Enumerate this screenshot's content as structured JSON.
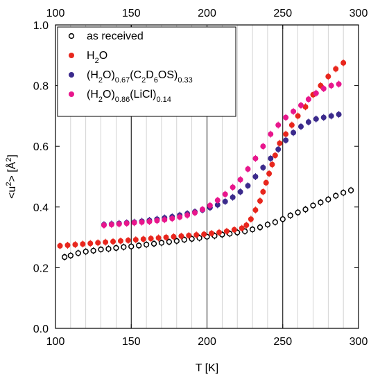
{
  "chart_data": {
    "type": "scatter",
    "xlabel": "T [K]",
    "ylabel_parts": {
      "before": "<u",
      "sup1": "2",
      "mid": "> [Å",
      "sup2": "2",
      "after": "]"
    },
    "xlim": [
      100,
      300
    ],
    "ylim": [
      0.0,
      1.0
    ],
    "x_ticks": [
      100,
      150,
      200,
      250,
      300
    ],
    "y_ticks": [
      0.0,
      0.2,
      0.4,
      0.6,
      0.8,
      1.0
    ],
    "y_tick_labels": [
      "0.0",
      "0.2",
      "0.4",
      "0.6",
      "0.8",
      "1.0"
    ],
    "top_axis_ticks": [
      100,
      150,
      200,
      250,
      300
    ],
    "grid": {
      "major_vertical": [
        150,
        200,
        250
      ],
      "minor_vertical_step": 10,
      "horizontal": false
    },
    "legend_position": "top-left",
    "series": [
      {
        "label_parts": [
          {
            "t": "as received"
          }
        ],
        "color": "#000000",
        "marker": "open-circle",
        "points": [
          [
            106,
            0.235
          ],
          [
            110,
            0.24
          ],
          [
            115,
            0.248
          ],
          [
            120,
            0.253
          ],
          [
            125,
            0.256
          ],
          [
            130,
            0.26
          ],
          [
            135,
            0.262
          ],
          [
            140,
            0.265
          ],
          [
            145,
            0.268
          ],
          [
            150,
            0.27
          ],
          [
            155,
            0.273
          ],
          [
            160,
            0.276
          ],
          [
            165,
            0.279
          ],
          [
            170,
            0.282
          ],
          [
            175,
            0.285
          ],
          [
            180,
            0.288
          ],
          [
            185,
            0.292
          ],
          [
            190,
            0.295
          ],
          [
            195,
            0.298
          ],
          [
            200,
            0.302
          ],
          [
            205,
            0.305
          ],
          [
            210,
            0.309
          ],
          [
            215,
            0.312
          ],
          [
            220,
            0.316
          ],
          [
            225,
            0.32
          ],
          [
            230,
            0.326
          ],
          [
            235,
            0.333
          ],
          [
            240,
            0.342
          ],
          [
            245,
            0.35
          ],
          [
            250,
            0.36
          ],
          [
            255,
            0.372
          ],
          [
            260,
            0.382
          ],
          [
            265,
            0.392
          ],
          [
            270,
            0.405
          ],
          [
            275,
            0.415
          ],
          [
            280,
            0.425
          ],
          [
            285,
            0.437
          ],
          [
            290,
            0.447
          ],
          [
            295,
            0.455
          ]
        ]
      },
      {
        "label_parts": [
          {
            "t": "H"
          },
          {
            "t": "2",
            "sub": true
          },
          {
            "t": "O"
          }
        ],
        "color": "#e8261d",
        "marker": "filled-circle",
        "points": [
          [
            103,
            0.272
          ],
          [
            108,
            0.274
          ],
          [
            113,
            0.276
          ],
          [
            118,
            0.278
          ],
          [
            123,
            0.28
          ],
          [
            128,
            0.282
          ],
          [
            133,
            0.284
          ],
          [
            138,
            0.286
          ],
          [
            143,
            0.288
          ],
          [
            148,
            0.29
          ],
          [
            153,
            0.292
          ],
          [
            158,
            0.294
          ],
          [
            163,
            0.296
          ],
          [
            168,
            0.298
          ],
          [
            173,
            0.3
          ],
          [
            178,
            0.302
          ],
          [
            183,
            0.304
          ],
          [
            188,
            0.306
          ],
          [
            193,
            0.308
          ],
          [
            198,
            0.31
          ],
          [
            203,
            0.313
          ],
          [
            208,
            0.316
          ],
          [
            213,
            0.32
          ],
          [
            218,
            0.325
          ],
          [
            223,
            0.33
          ],
          [
            226,
            0.34
          ],
          [
            229,
            0.36
          ],
          [
            232,
            0.39
          ],
          [
            235,
            0.42
          ],
          [
            237,
            0.45
          ],
          [
            239,
            0.48
          ],
          [
            241,
            0.51
          ],
          [
            243,
            0.54
          ],
          [
            245,
            0.57
          ],
          [
            248,
            0.61
          ],
          [
            252,
            0.64
          ],
          [
            256,
            0.67
          ],
          [
            260,
            0.7
          ],
          [
            265,
            0.73
          ],
          [
            270,
            0.77
          ],
          [
            275,
            0.8
          ],
          [
            280,
            0.83
          ],
          [
            285,
            0.855
          ],
          [
            290,
            0.875
          ]
        ]
      },
      {
        "label_parts": [
          {
            "t": "(H"
          },
          {
            "t": "2",
            "sub": true
          },
          {
            "t": "O)"
          },
          {
            "t": "0.67",
            "sub": true
          },
          {
            "t": "(C"
          },
          {
            "t": "2",
            "sub": true
          },
          {
            "t": "D"
          },
          {
            "t": "6",
            "sub": true
          },
          {
            "t": "OS)"
          },
          {
            "t": "0.33",
            "sub": true
          }
        ],
        "color": "#3b2a8c",
        "marker": "filled-circle",
        "points": [
          [
            132,
            0.342
          ],
          [
            137,
            0.344
          ],
          [
            142,
            0.346
          ],
          [
            147,
            0.348
          ],
          [
            152,
            0.35
          ],
          [
            157,
            0.353
          ],
          [
            162,
            0.356
          ],
          [
            167,
            0.36
          ],
          [
            172,
            0.364
          ],
          [
            177,
            0.368
          ],
          [
            182,
            0.373
          ],
          [
            187,
            0.378
          ],
          [
            192,
            0.384
          ],
          [
            197,
            0.39
          ],
          [
            202,
            0.398
          ],
          [
            207,
            0.407
          ],
          [
            212,
            0.418
          ],
          [
            217,
            0.432
          ],
          [
            222,
            0.45
          ],
          [
            227,
            0.47
          ],
          [
            232,
            0.5
          ],
          [
            237,
            0.53
          ],
          [
            242,
            0.56
          ],
          [
            247,
            0.59
          ],
          [
            252,
            0.62
          ],
          [
            257,
            0.645
          ],
          [
            262,
            0.665
          ],
          [
            267,
            0.68
          ],
          [
            272,
            0.69
          ],
          [
            277,
            0.695
          ],
          [
            282,
            0.7
          ],
          [
            287,
            0.705
          ]
        ]
      },
      {
        "label_parts": [
          {
            "t": "(H"
          },
          {
            "t": "2",
            "sub": true
          },
          {
            "t": "O)"
          },
          {
            "t": "0.86",
            "sub": true
          },
          {
            "t": "(LiCl)"
          },
          {
            "t": "0.14",
            "sub": true
          }
        ],
        "color": "#e8168c",
        "marker": "filled-circle",
        "points": [
          [
            132,
            0.34
          ],
          [
            137,
            0.342
          ],
          [
            142,
            0.344
          ],
          [
            147,
            0.346
          ],
          [
            152,
            0.348
          ],
          [
            157,
            0.35
          ],
          [
            162,
            0.352
          ],
          [
            167,
            0.355
          ],
          [
            172,
            0.358
          ],
          [
            177,
            0.362
          ],
          [
            182,
            0.367
          ],
          [
            187,
            0.373
          ],
          [
            192,
            0.381
          ],
          [
            197,
            0.392
          ],
          [
            202,
            0.405
          ],
          [
            207,
            0.422
          ],
          [
            212,
            0.442
          ],
          [
            217,
            0.465
          ],
          [
            222,
            0.49
          ],
          [
            227,
            0.525
          ],
          [
            232,
            0.56
          ],
          [
            237,
            0.6
          ],
          [
            242,
            0.64
          ],
          [
            247,
            0.67
          ],
          [
            252,
            0.695
          ],
          [
            257,
            0.715
          ],
          [
            262,
            0.735
          ],
          [
            267,
            0.755
          ],
          [
            272,
            0.775
          ],
          [
            277,
            0.79
          ],
          [
            282,
            0.8
          ],
          [
            287,
            0.805
          ]
        ]
      }
    ]
  }
}
